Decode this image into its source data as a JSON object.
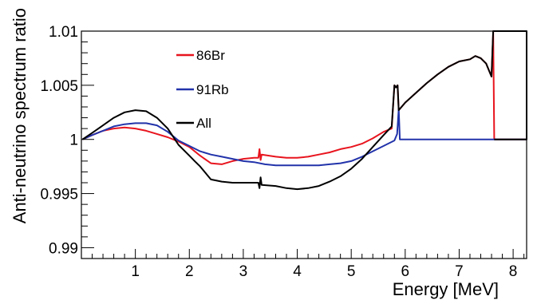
{
  "chart_data": {
    "type": "line",
    "title": "",
    "xlabel": "Energy [MeV]",
    "ylabel": "Anti-neutrino spectrum ratio",
    "xlim": [
      0,
      8.25
    ],
    "ylim": [
      0.989,
      1.01
    ],
    "x_ticks": [
      {
        "value": 1,
        "label": "1"
      },
      {
        "value": 2,
        "label": "2"
      },
      {
        "value": 3,
        "label": "3"
      },
      {
        "value": 4,
        "label": "4"
      },
      {
        "value": 5,
        "label": "5"
      },
      {
        "value": 6,
        "label": "6"
      },
      {
        "value": 7,
        "label": "7"
      },
      {
        "value": 8,
        "label": "8"
      }
    ],
    "y_ticks": [
      {
        "value": 0.99,
        "label": "0.99"
      },
      {
        "value": 0.995,
        "label": "0.995"
      },
      {
        "value": 1.0,
        "label": "1"
      },
      {
        "value": 1.005,
        "label": "1.005"
      },
      {
        "value": 1.01,
        "label": "1.01"
      }
    ],
    "grid": false,
    "legend_position": "top-left",
    "series": [
      {
        "name": "86Br",
        "color": "#e8141e",
        "points": [
          [
            0.02,
            1.0
          ],
          [
            0.2,
            1.0004
          ],
          [
            0.4,
            1.0008
          ],
          [
            0.6,
            1.001
          ],
          [
            0.8,
            1.0011
          ],
          [
            1.0,
            1.001
          ],
          [
            1.2,
            1.0008
          ],
          [
            1.4,
            1.0005
          ],
          [
            1.6,
            1.0002
          ],
          [
            1.8,
            0.9998
          ],
          [
            2.0,
            0.9993
          ],
          [
            2.2,
            0.9985
          ],
          [
            2.4,
            0.9978
          ],
          [
            2.6,
            0.9977
          ],
          [
            2.8,
            0.998
          ],
          [
            3.0,
            0.9982
          ],
          [
            3.2,
            0.9983
          ],
          [
            3.28,
            0.9983
          ],
          [
            3.3,
            0.9991
          ],
          [
            3.32,
            0.9981
          ],
          [
            3.34,
            0.9986
          ],
          [
            3.6,
            0.9984
          ],
          [
            3.8,
            0.9983
          ],
          [
            4.0,
            0.9983
          ],
          [
            4.2,
            0.9984
          ],
          [
            4.4,
            0.9986
          ],
          [
            4.6,
            0.9988
          ],
          [
            4.8,
            0.9991
          ],
          [
            5.0,
            0.9993
          ],
          [
            5.2,
            0.9996
          ],
          [
            5.4,
            1.0001
          ],
          [
            5.6,
            1.0007
          ],
          [
            5.75,
            1.001
          ],
          [
            5.8,
            1.005
          ],
          [
            5.83,
            1.0048
          ],
          [
            5.86,
            1.005
          ],
          [
            5.88,
            1.0027
          ],
          [
            6.0,
            1.0034
          ],
          [
            6.2,
            1.0043
          ],
          [
            6.4,
            1.0052
          ],
          [
            6.6,
            1.006
          ],
          [
            6.8,
            1.0067
          ],
          [
            7.0,
            1.0072
          ],
          [
            7.2,
            1.0074
          ],
          [
            7.3,
            1.0077
          ],
          [
            7.4,
            1.0075
          ],
          [
            7.5,
            1.007
          ],
          [
            7.6,
            1.0058
          ],
          [
            7.63,
            1.01
          ],
          [
            7.65,
            1.0
          ],
          [
            8.25,
            1.0
          ]
        ]
      },
      {
        "name": "91Rb",
        "color": "#2233aa",
        "points": [
          [
            0.02,
            1.0
          ],
          [
            0.2,
            1.0004
          ],
          [
            0.4,
            1.0008
          ],
          [
            0.6,
            1.0012
          ],
          [
            0.8,
            1.0014
          ],
          [
            1.0,
            1.0015
          ],
          [
            1.2,
            1.0015
          ],
          [
            1.4,
            1.0013
          ],
          [
            1.6,
            1.0007
          ],
          [
            1.8,
            0.9999
          ],
          [
            2.0,
            0.9994
          ],
          [
            2.2,
            0.9989
          ],
          [
            2.4,
            0.9986
          ],
          [
            2.6,
            0.9984
          ],
          [
            2.8,
            0.9982
          ],
          [
            3.0,
            0.998
          ],
          [
            3.2,
            0.9979
          ],
          [
            3.4,
            0.9977
          ],
          [
            3.6,
            0.9976
          ],
          [
            3.8,
            0.9976
          ],
          [
            4.0,
            0.9976
          ],
          [
            4.2,
            0.9976
          ],
          [
            4.4,
            0.9976
          ],
          [
            4.6,
            0.9977
          ],
          [
            4.8,
            0.9978
          ],
          [
            5.0,
            0.998
          ],
          [
            5.2,
            0.9984
          ],
          [
            5.4,
            0.9989
          ],
          [
            5.6,
            0.9994
          ],
          [
            5.8,
            0.9999
          ],
          [
            5.85,
            1.0005
          ],
          [
            5.88,
            1.0028
          ],
          [
            5.9,
            1.0
          ],
          [
            8.25,
            1.0
          ]
        ]
      },
      {
        "name": "All",
        "color": "#000000",
        "points": [
          [
            0.02,
            1.0
          ],
          [
            0.2,
            1.0006
          ],
          [
            0.4,
            1.0013
          ],
          [
            0.6,
            1.002
          ],
          [
            0.8,
            1.0025
          ],
          [
            1.0,
            1.0027
          ],
          [
            1.2,
            1.0026
          ],
          [
            1.4,
            1.002
          ],
          [
            1.6,
            1.001
          ],
          [
            1.8,
            0.9995
          ],
          [
            2.0,
            0.9985
          ],
          [
            2.1,
            0.998
          ],
          [
            2.2,
            0.9975
          ],
          [
            2.4,
            0.9963
          ],
          [
            2.6,
            0.9961
          ],
          [
            2.8,
            0.996
          ],
          [
            3.0,
            0.996
          ],
          [
            3.2,
            0.996
          ],
          [
            3.28,
            0.996
          ],
          [
            3.3,
            0.9955
          ],
          [
            3.32,
            0.9965
          ],
          [
            3.34,
            0.9958
          ],
          [
            3.6,
            0.9957
          ],
          [
            3.8,
            0.9955
          ],
          [
            4.0,
            0.9954
          ],
          [
            4.2,
            0.9955
          ],
          [
            4.4,
            0.9957
          ],
          [
            4.6,
            0.9961
          ],
          [
            4.8,
            0.9966
          ],
          [
            5.0,
            0.9973
          ],
          [
            5.2,
            0.9982
          ],
          [
            5.4,
            0.9993
          ],
          [
            5.6,
            1.0004
          ],
          [
            5.75,
            1.0012
          ],
          [
            5.8,
            1.005
          ],
          [
            5.83,
            1.0048
          ],
          [
            5.86,
            1.005
          ],
          [
            5.88,
            1.0027
          ],
          [
            6.0,
            1.0034
          ],
          [
            6.2,
            1.0043
          ],
          [
            6.4,
            1.0052
          ],
          [
            6.6,
            1.006
          ],
          [
            6.8,
            1.0067
          ],
          [
            7.0,
            1.0072
          ],
          [
            7.2,
            1.0074
          ],
          [
            7.3,
            1.0077
          ],
          [
            7.4,
            1.0075
          ],
          [
            7.5,
            1.007
          ],
          [
            7.6,
            1.0058
          ],
          [
            7.63,
            1.01
          ],
          [
            7.65,
            1.01
          ],
          [
            8.25,
            1.01
          ],
          [
            8.25,
            1.0
          ],
          [
            7.65,
            1.0
          ]
        ]
      }
    ]
  }
}
